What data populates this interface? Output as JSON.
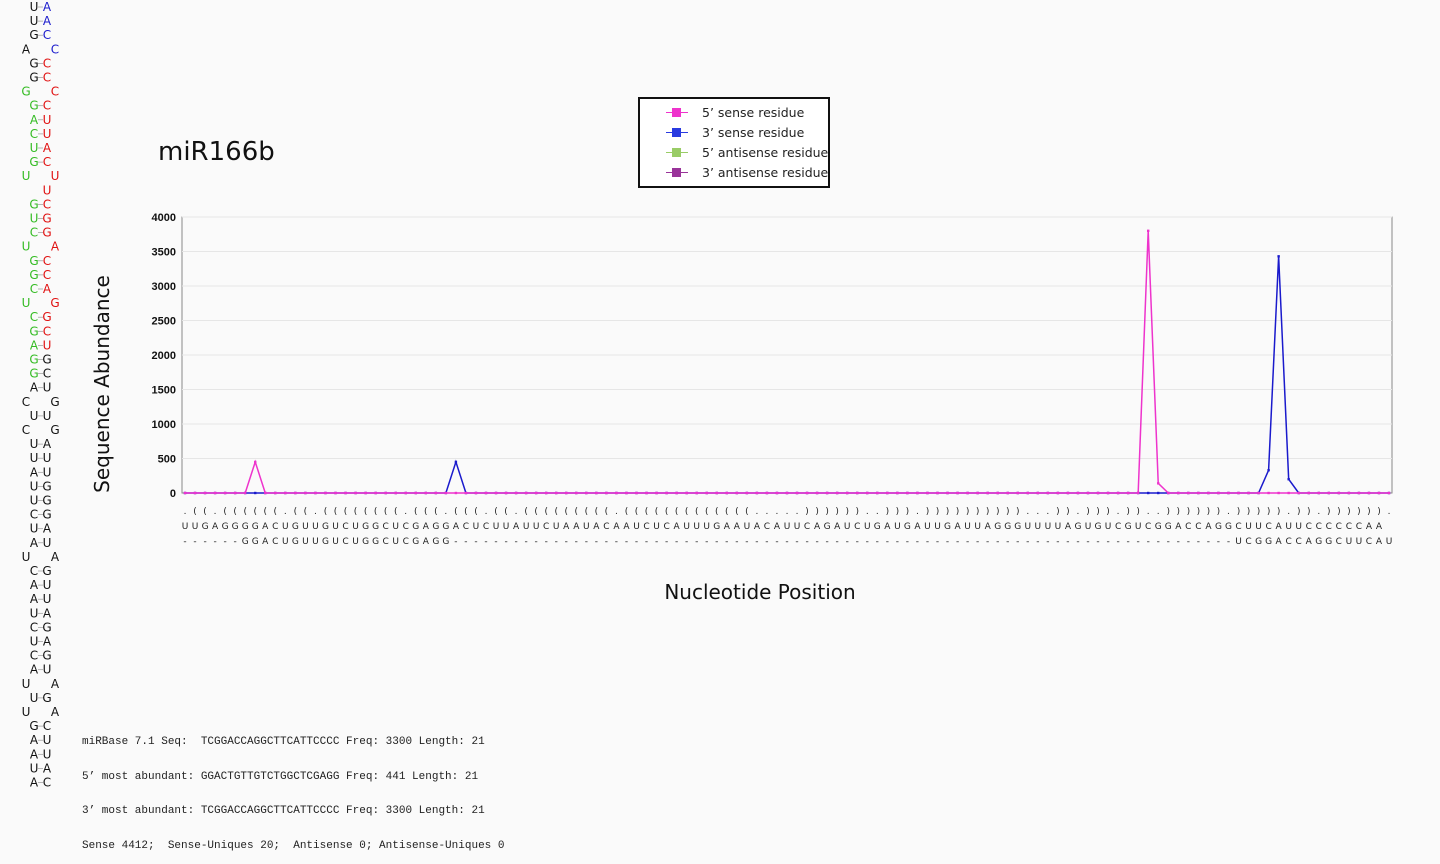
{
  "title": "miR166b",
  "colors": {
    "sense5": "#ee33cc",
    "sense3": "#1a1acc",
    "antisense5": "#99cc66",
    "antisense3": "#993399",
    "hairpin_black": "#111111",
    "hairpin_blue": "#1a1acc",
    "hairpin_red": "#e01010",
    "hairpin_green": "#33bb22"
  },
  "legend": [
    {
      "label": "5’ sense residue",
      "color": "#ee33cc"
    },
    {
      "label": "3’ sense residue",
      "color": "#2a3ae0"
    },
    {
      "label": "5’ antisense residue",
      "color": "#99cc66"
    },
    {
      "label": "3’ antisense residue",
      "color": "#993399"
    }
  ],
  "chart_data": {
    "type": "line",
    "ylabel": "Sequence Abundance",
    "xlabel": "Nucleotide Position",
    "ylim": [
      0,
      4000
    ],
    "yticks": [
      "0",
      "500",
      "1000",
      "1500",
      "2000",
      "2500",
      "3000",
      "3500",
      "4000"
    ],
    "grid": true,
    "legend_position": "top-center",
    "structure_row": ".((.((((((.((.((((((((.(((.(((.((.(((((((((.(((((((((((((.....))))))..))).))))))))))...)).))).))..)))))).))))).)).)))))).)).",
    "sequence_row": "UUGAGGGGACUGUUGUCUGGCUCGAGGACUCUUAUUCUAAUACAAUCUCAUUUGAAUACAUUCAGAUCUGAUGAUUGAUUAGGGUUUUAGUGUCGUCGGACCAGGCUUCAUUCCCCCCAA",
    "mature_row": "------GGACUGUUGUCUGGCUCGAGG------------------------------------------------------------------------------UCGGACCAGGCUUCAUUCCCC----",
    "series": [
      {
        "name": "5’ sense residue",
        "points": [
          [
            7,
            450
          ]
        ],
        "peak_extra": []
      },
      {
        "name": "3’ sense residue",
        "points": [
          [
            27,
            450
          ],
          [
            108,
            330
          ],
          [
            109,
            3430
          ],
          [
            110,
            200
          ]
        ]
      },
      {
        "name": "5’ sense residue",
        "points": [
          [
            96,
            3800
          ],
          [
            97,
            140
          ]
        ]
      },
      {
        "name": "5’ antisense residue",
        "points": []
      },
      {
        "name": "3’ antisense residue",
        "points": []
      }
    ],
    "n_positions": 121
  },
  "footer_lines": [
    "miRBase 7.1 Seq:  TCGGACCAGGCTTCATTCCCC Freq: 3300 Length: 21",
    "5’ most abundant: GGACTGTTGTCTGGCTCGAGG Freq: 441 Length: 21",
    "3’ most abundant: TCGGACCAGGCTTCATTCCCC Freq: 3300 Length: 21",
    "Sense 4412;  Sense-Uniques 20;  Antisense 0; Antisense-Uniques 0"
  ],
  "hairpin": [
    [
      "U",
      "A",
      "k",
      "b"
    ],
    [
      "U",
      "A",
      "k",
      "b"
    ],
    [
      "G",
      "C",
      "k",
      "b"
    ],
    [
      "A",
      "C",
      "k",
      "b"
    ],
    [
      "G",
      "C",
      "k",
      "r"
    ],
    [
      "G",
      "C",
      "k",
      "r"
    ],
    [
      "G",
      "C",
      "g",
      "r"
    ],
    [
      "G",
      "C",
      "g",
      "r"
    ],
    [
      "A",
      "U",
      "g",
      "r"
    ],
    [
      "C",
      "U",
      "g",
      "r"
    ],
    [
      "U",
      "A",
      "g",
      "r"
    ],
    [
      "G",
      "C",
      "g",
      "r"
    ],
    [
      "U",
      "U",
      "g",
      "r"
    ],
    [
      "",
      "U",
      "g",
      "r"
    ],
    [
      "G",
      "C",
      "g",
      "r"
    ],
    [
      "U",
      "G",
      "g",
      "r"
    ],
    [
      "C",
      "G",
      "g",
      "r"
    ],
    [
      "U",
      "A",
      "g",
      "r"
    ],
    [
      "G",
      "C",
      "g",
      "r"
    ],
    [
      "G",
      "C",
      "g",
      "r"
    ],
    [
      "C",
      "A",
      "g",
      "r"
    ],
    [
      "U",
      "G",
      "g",
      "r"
    ],
    [
      "C",
      "G",
      "g",
      "r"
    ],
    [
      "G",
      "C",
      "g",
      "r"
    ],
    [
      "A",
      "U",
      "g",
      "r"
    ],
    [
      "G",
      "G",
      "g",
      "k"
    ],
    [
      "G",
      "C",
      "g",
      "k"
    ],
    [
      "A",
      "U",
      "k",
      "k"
    ],
    [
      "C",
      "G",
      "k",
      "k"
    ],
    [
      "U",
      "U",
      "k",
      "k"
    ],
    [
      "C",
      "G",
      "k",
      "k"
    ],
    [
      "U",
      "A",
      "k",
      "k"
    ],
    [
      "U",
      "U",
      "k",
      "k"
    ],
    [
      "A",
      "U",
      "k",
      "k"
    ],
    [
      "U",
      "G",
      "k",
      "k"
    ],
    [
      "U",
      "G",
      "k",
      "k"
    ],
    [
      "C",
      "G",
      "k",
      "k"
    ],
    [
      "U",
      "A",
      "k",
      "k"
    ],
    [
      "A",
      "U",
      "k",
      "k"
    ],
    [
      "U",
      "A",
      "k",
      "k"
    ],
    [
      "C",
      "G",
      "k",
      "k"
    ],
    [
      "A",
      "U",
      "k",
      "k"
    ],
    [
      "A",
      "U",
      "k",
      "k"
    ],
    [
      "U",
      "A",
      "k",
      "k"
    ],
    [
      "C",
      "G",
      "k",
      "k"
    ],
    [
      "U",
      "A",
      "k",
      "k"
    ],
    [
      "C",
      "G",
      "k",
      "k"
    ],
    [
      "A",
      "U",
      "k",
      "k"
    ],
    [
      "U",
      "A",
      "k",
      "k"
    ],
    [
      "U",
      "G",
      "k",
      "k"
    ],
    [
      "U",
      "A",
      "k",
      "k"
    ],
    [
      "G",
      "C",
      "k",
      "k"
    ],
    [
      "A",
      "U",
      "k",
      "k"
    ],
    [
      "A",
      "U",
      "k",
      "k"
    ],
    [
      "U",
      "A",
      "k",
      "k"
    ],
    [
      "A",
      "C",
      "k",
      "k"
    ]
  ]
}
